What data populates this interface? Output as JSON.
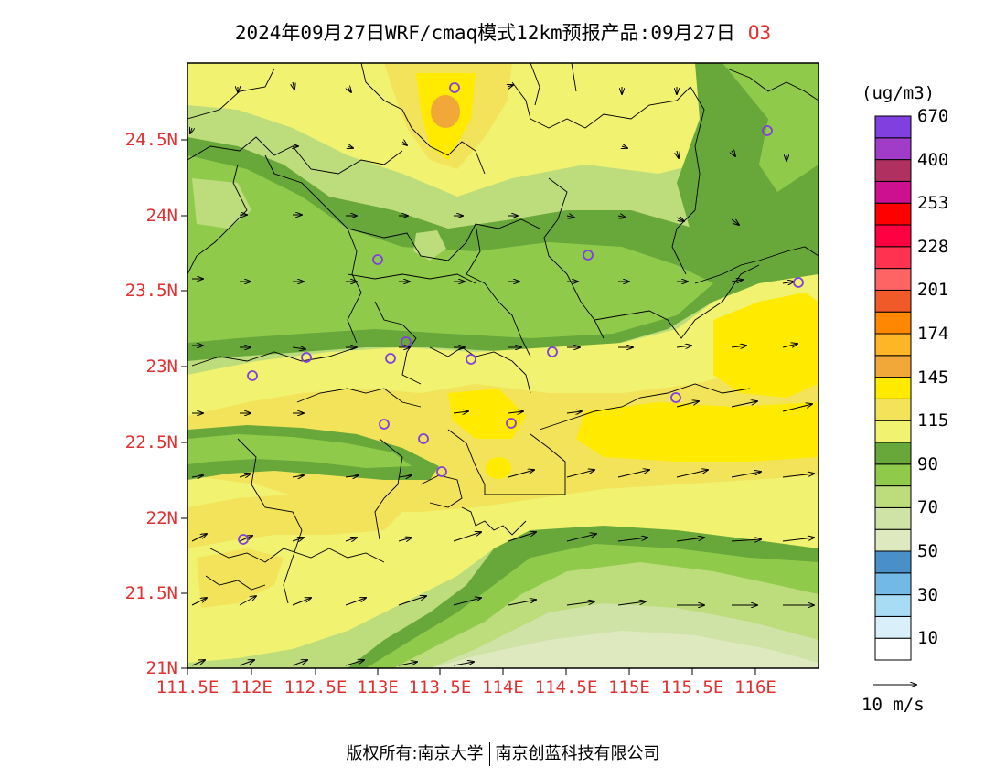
{
  "title": {
    "text": "2024年09月27日WRF/cmaq模式12km预报产品:09月27日",
    "species": "O3"
  },
  "lat_labels": [
    "24.5N",
    "24N",
    "23.5N",
    "23N",
    "22.5N",
    "22N",
    "21.5N",
    "21N"
  ],
  "lon_labels": [
    "111.5E",
    "112E",
    "112.5E",
    "113E",
    "113.5E",
    "114E",
    "114.5E",
    "115E",
    "115.5E",
    "116E"
  ],
  "colorbar": {
    "unit": "(ug/m3)",
    "colors": [
      "#ffffff",
      "#d9f0fb",
      "#a8dcf4",
      "#72b9e5",
      "#4a90c8",
      "#dfe9c0",
      "#cfe3a6",
      "#bddc7c",
      "#8fca4b",
      "#68a83a",
      "#f0f270",
      "#f2e35a",
      "#ffea00",
      "#f2a838",
      "#ffb626",
      "#ff8800",
      "#f05a28",
      "#ff6464",
      "#ff3250",
      "#ff0040",
      "#ff0000",
      "#cc1090",
      "#b03060",
      "#a03cc8",
      "#8040e0"
    ],
    "labels": [
      "10",
      "30",
      "50",
      "70",
      "90",
      "115",
      "145",
      "174",
      "201",
      "228",
      "253",
      "400",
      "670"
    ]
  },
  "wind_legend": "10 m/s",
  "footer": {
    "left": "版权所有:南京大学",
    "right": "南京创蓝科技有限公司"
  }
}
